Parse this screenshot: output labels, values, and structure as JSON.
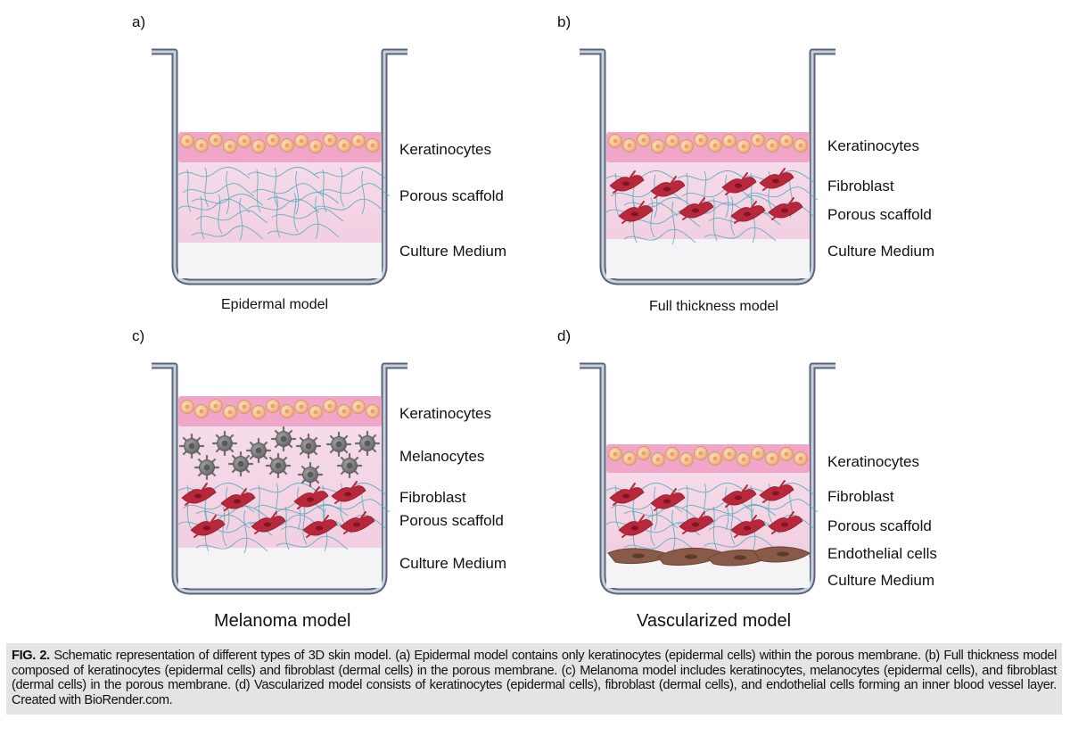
{
  "panels": [
    {
      "letter": "a)",
      "title": "Epidermal model",
      "labels": [
        "Keratinocytes",
        "Porous scaffold",
        "Culture Medium"
      ]
    },
    {
      "letter": "b)",
      "title": "Full thickness model",
      "labels": [
        "Keratinocytes",
        "Fibroblast",
        "Porous scaffold",
        "Culture Medium"
      ]
    },
    {
      "letter": "c)",
      "title": "Melanoma model",
      "labels": [
        "Keratinocytes",
        "Melanocytes",
        "Fibroblast",
        "Porous scaffold",
        "Culture Medium"
      ]
    },
    {
      "letter": "d)",
      "title": "Vascularized model",
      "labels": [
        "Keratinocytes",
        "Fibroblast",
        "Porous scaffold",
        "Endothelial cells",
        "Culture Medium"
      ]
    }
  ],
  "caption": {
    "fig_label": "FIG. 2.",
    "text": "Schematic representation of different types of 3D skin model. (a) Epidermal model contains only keratinocytes (epidermal cells) within the porous membrane. (b) Full thickness model composed of keratinocytes (epidermal cells) and fibroblast (dermal cells) in the porous membrane. (c) Melanoma model includes keratinocytes, melanocytes (epidermal cells), and fibroblast (dermal cells) in the porous membrane. (d) Vascularized model consists of keratinocytes (epidermal cells), fibroblast (dermal cells), and endothelial cells forming an inner blood vessel layer. Created with BioRender.com."
  },
  "colors": {
    "well_outline": "#5a6478",
    "well_fill": "#c9d1de",
    "medium": "#f4f4f6",
    "scaffold": "#f4d8e8",
    "epidermis": "#f0a6c8",
    "keratinocyte": "#f3c79a",
    "fibroblast": "#b8283a",
    "melanocyte": "#7d7d7d",
    "endothelial": "#8a5a48",
    "fiber": "#4fa8b8",
    "caption_bg": "#e4e4e6"
  }
}
